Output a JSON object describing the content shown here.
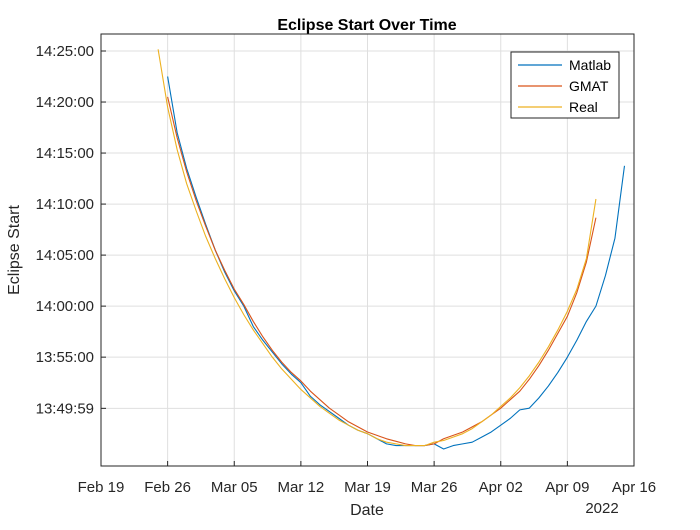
{
  "chart_data": {
    "type": "line",
    "title": "Eclipse Start Over Time",
    "xlabel": "Date",
    "ylabel": "Eclipse Start",
    "x_secondary_label": "2022",
    "x_ticks": [
      {
        "date": "2022-02-19",
        "label": "Feb 19"
      },
      {
        "date": "2022-02-26",
        "label": "Feb 26"
      },
      {
        "date": "2022-03-05",
        "label": "Mar 05"
      },
      {
        "date": "2022-03-12",
        "label": "Mar 12"
      },
      {
        "date": "2022-03-19",
        "label": "Mar 19"
      },
      {
        "date": "2022-03-26",
        "label": "Mar 26"
      },
      {
        "date": "2022-04-02",
        "label": "Apr 02"
      },
      {
        "date": "2022-04-09",
        "label": "Apr 09"
      },
      {
        "date": "2022-04-16",
        "label": "Apr 16"
      }
    ],
    "y_ticks": [
      "13:49:59",
      "13:55:00",
      "14:00:00",
      "14:05:00",
      "14:10:00",
      "14:15:00",
      "14:20:00",
      "14:25:00"
    ],
    "xlim": [
      "2022-02-19",
      "2022-04-16"
    ],
    "ylim": [
      "13:44:20",
      "14:26:40"
    ],
    "grid": true,
    "legend_position": "top-right",
    "series": [
      {
        "name": "Matlab",
        "color": "#0072BD",
        "points": [
          [
            "2022-02-26",
            "14:22:30"
          ],
          [
            "2022-02-27",
            "14:17:00"
          ],
          [
            "2022-02-28",
            "14:13:30"
          ],
          [
            "2022-03-01",
            "14:10:40"
          ],
          [
            "2022-03-02",
            "14:08:00"
          ],
          [
            "2022-03-03",
            "14:05:30"
          ],
          [
            "2022-03-04",
            "14:03:20"
          ],
          [
            "2022-03-05",
            "14:01:30"
          ],
          [
            "2022-03-06",
            "14:00:00"
          ],
          [
            "2022-03-07",
            "13:58:00"
          ],
          [
            "2022-03-08",
            "13:56:40"
          ],
          [
            "2022-03-09",
            "13:55:30"
          ],
          [
            "2022-03-10",
            "13:54:20"
          ],
          [
            "2022-03-11",
            "13:53:20"
          ],
          [
            "2022-03-12",
            "13:52:30"
          ],
          [
            "2022-03-13",
            "13:51:10"
          ],
          [
            "2022-03-14",
            "13:50:20"
          ],
          [
            "2022-03-15",
            "13:49:40"
          ],
          [
            "2022-03-16",
            "13:49:00"
          ],
          [
            "2022-03-17",
            "13:48:20"
          ],
          [
            "2022-03-18",
            "13:47:50"
          ],
          [
            "2022-03-19",
            "13:47:30"
          ],
          [
            "2022-03-20",
            "13:47:00"
          ],
          [
            "2022-03-21",
            "13:46:30"
          ],
          [
            "2022-03-22",
            "13:46:20"
          ],
          [
            "2022-03-23",
            "13:46:20"
          ],
          [
            "2022-03-24",
            "13:46:20"
          ],
          [
            "2022-03-25",
            "13:46:20"
          ],
          [
            "2022-03-26",
            "13:46:30"
          ],
          [
            "2022-03-27",
            "13:46:00"
          ],
          [
            "2022-03-28",
            "13:46:20"
          ],
          [
            "2022-03-29",
            "13:46:30"
          ],
          [
            "2022-03-30",
            "13:46:40"
          ],
          [
            "2022-03-31",
            "13:47:10"
          ],
          [
            "2022-04-01",
            "13:47:40"
          ],
          [
            "2022-04-02",
            "13:48:20"
          ],
          [
            "2022-04-03",
            "13:49:00"
          ],
          [
            "2022-04-04",
            "13:49:50"
          ],
          [
            "2022-04-05",
            "13:50:00"
          ],
          [
            "2022-04-06",
            "13:51:00"
          ],
          [
            "2022-04-07",
            "13:52:10"
          ],
          [
            "2022-04-08",
            "13:53:30"
          ],
          [
            "2022-04-09",
            "13:55:00"
          ],
          [
            "2022-04-10",
            "13:56:40"
          ],
          [
            "2022-04-11",
            "13:58:30"
          ],
          [
            "2022-04-12",
            "14:00:00"
          ],
          [
            "2022-04-13",
            "14:03:00"
          ],
          [
            "2022-04-14",
            "14:06:40"
          ],
          [
            "2022-04-15",
            "14:13:45"
          ]
        ]
      },
      {
        "name": "GMAT",
        "color": "#D95319",
        "points": [
          [
            "2022-02-26",
            "14:20:30"
          ],
          [
            "2022-02-27",
            "14:16:30"
          ],
          [
            "2022-02-28",
            "14:13:10"
          ],
          [
            "2022-03-01",
            "14:10:20"
          ],
          [
            "2022-03-02",
            "14:07:50"
          ],
          [
            "2022-03-03",
            "14:05:30"
          ],
          [
            "2022-03-04",
            "14:03:30"
          ],
          [
            "2022-03-05",
            "14:01:40"
          ],
          [
            "2022-03-06",
            "14:00:10"
          ],
          [
            "2022-03-07",
            "13:58:30"
          ],
          [
            "2022-03-08",
            "13:57:00"
          ],
          [
            "2022-03-09",
            "13:55:40"
          ],
          [
            "2022-03-10",
            "13:54:30"
          ],
          [
            "2022-03-11",
            "13:53:30"
          ],
          [
            "2022-03-12",
            "13:52:40"
          ],
          [
            "2022-03-13",
            "13:51:40"
          ],
          [
            "2022-03-14",
            "13:50:50"
          ],
          [
            "2022-03-15",
            "13:50:00"
          ],
          [
            "2022-03-16",
            "13:49:20"
          ],
          [
            "2022-03-17",
            "13:48:40"
          ],
          [
            "2022-03-18",
            "13:48:10"
          ],
          [
            "2022-03-19",
            "13:47:40"
          ],
          [
            "2022-03-20",
            "13:47:20"
          ],
          [
            "2022-03-21",
            "13:47:00"
          ],
          [
            "2022-03-22",
            "13:46:45"
          ],
          [
            "2022-03-23",
            "13:46:30"
          ],
          [
            "2022-03-24",
            "13:46:20"
          ],
          [
            "2022-03-25",
            "13:46:20"
          ],
          [
            "2022-03-26",
            "13:46:30"
          ],
          [
            "2022-03-27",
            "13:47:00"
          ],
          [
            "2022-03-28",
            "13:47:20"
          ],
          [
            "2022-03-29",
            "13:47:40"
          ],
          [
            "2022-03-30",
            "13:48:10"
          ],
          [
            "2022-03-31",
            "13:48:40"
          ],
          [
            "2022-04-01",
            "13:49:20"
          ],
          [
            "2022-04-02",
            "13:50:00"
          ],
          [
            "2022-04-03",
            "13:50:50"
          ],
          [
            "2022-04-04",
            "13:51:40"
          ],
          [
            "2022-04-05",
            "13:52:50"
          ],
          [
            "2022-04-06",
            "13:54:10"
          ],
          [
            "2022-04-07",
            "13:55:40"
          ],
          [
            "2022-04-08",
            "13:57:20"
          ],
          [
            "2022-04-09",
            "13:59:00"
          ],
          [
            "2022-04-10",
            "14:01:20"
          ],
          [
            "2022-04-11",
            "14:04:20"
          ],
          [
            "2022-04-12",
            "14:08:40"
          ]
        ]
      },
      {
        "name": "Real",
        "color": "#EDB120",
        "points": [
          [
            "2022-02-25",
            "14:25:10"
          ],
          [
            "2022-02-26",
            "14:19:30"
          ],
          [
            "2022-02-27",
            "14:15:20"
          ],
          [
            "2022-02-28",
            "14:12:00"
          ],
          [
            "2022-03-01",
            "14:09:20"
          ],
          [
            "2022-03-02",
            "14:06:50"
          ],
          [
            "2022-03-03",
            "14:04:40"
          ],
          [
            "2022-03-04",
            "14:02:40"
          ],
          [
            "2022-03-05",
            "14:00:50"
          ],
          [
            "2022-03-06",
            "13:59:10"
          ],
          [
            "2022-03-07",
            "13:57:40"
          ],
          [
            "2022-03-08",
            "13:56:20"
          ],
          [
            "2022-03-09",
            "13:55:00"
          ],
          [
            "2022-03-10",
            "13:53:50"
          ],
          [
            "2022-03-11",
            "13:52:50"
          ],
          [
            "2022-03-12",
            "13:51:50"
          ],
          [
            "2022-03-13",
            "13:51:00"
          ],
          [
            "2022-03-14",
            "13:50:10"
          ],
          [
            "2022-03-15",
            "13:49:30"
          ],
          [
            "2022-03-16",
            "13:48:50"
          ],
          [
            "2022-03-17",
            "13:48:20"
          ],
          [
            "2022-03-18",
            "13:47:50"
          ],
          [
            "2022-03-19",
            "13:47:30"
          ],
          [
            "2022-03-20",
            "13:47:00"
          ],
          [
            "2022-03-21",
            "13:46:40"
          ],
          [
            "2022-03-22",
            "13:46:30"
          ],
          [
            "2022-03-23",
            "13:46:20"
          ],
          [
            "2022-03-24",
            "13:46:20"
          ],
          [
            "2022-03-25",
            "13:46:20"
          ],
          [
            "2022-03-26",
            "13:46:40"
          ],
          [
            "2022-03-27",
            "13:46:50"
          ],
          [
            "2022-03-28",
            "13:47:10"
          ],
          [
            "2022-03-29",
            "13:47:30"
          ],
          [
            "2022-03-30",
            "13:48:00"
          ],
          [
            "2022-03-31",
            "13:48:40"
          ],
          [
            "2022-04-01",
            "13:49:20"
          ],
          [
            "2022-04-02",
            "13:50:10"
          ],
          [
            "2022-04-03",
            "13:51:00"
          ],
          [
            "2022-04-04",
            "13:52:00"
          ],
          [
            "2022-04-05",
            "13:53:10"
          ],
          [
            "2022-04-06",
            "13:54:30"
          ],
          [
            "2022-04-07",
            "13:56:00"
          ],
          [
            "2022-04-08",
            "13:57:40"
          ],
          [
            "2022-04-09",
            "13:59:30"
          ],
          [
            "2022-04-10",
            "14:01:40"
          ],
          [
            "2022-04-11",
            "14:04:40"
          ],
          [
            "2022-04-12",
            "14:10:30"
          ]
        ]
      }
    ]
  }
}
